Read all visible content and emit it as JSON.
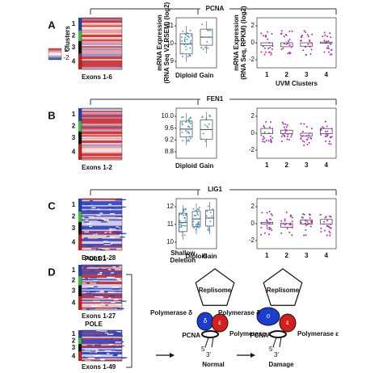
{
  "panels": [
    {
      "label": "A",
      "gene": "PCNA",
      "legend": {
        "title": "Clusters",
        "high": "2",
        "low": "-2"
      },
      "clusters": [
        "1",
        "2",
        "3",
        "4"
      ],
      "heatmap_label": "Exons 1-6",
      "box_y_label": [
        "mRNA Expression",
        "(RNA Seq V2 RSEM) (log2)"
      ],
      "box_yticks": [
        "11",
        "10",
        "9"
      ],
      "box_categories": [
        "Diploid",
        "Gain"
      ],
      "bar_y_label": [
        "mRNA Expression",
        "(RNA Seq, RPKM) (log2)"
      ],
      "bar_yticks": [
        "2",
        "0",
        "-2"
      ],
      "bar_categories": [
        "1",
        "2",
        "3",
        "4"
      ],
      "bar_x_label": "UVM Clusters"
    },
    {
      "label": "B",
      "gene": "FEN1",
      "clusters": [
        "1",
        "2",
        "3",
        "4"
      ],
      "heatmap_label": "Exons 1-2",
      "box_yticks": [
        "10.0",
        "9.6",
        "9.2",
        "8.8"
      ],
      "box_categories": [
        "Diploid",
        "Gain"
      ],
      "bar_yticks": [
        "2",
        "0",
        "-2"
      ],
      "bar_categories": [
        "1",
        "2",
        "3",
        "4"
      ]
    },
    {
      "label": "C",
      "gene": "LIG1",
      "clusters": [
        "1",
        "2",
        "3",
        "4"
      ],
      "heatmap_label": "Exons 1-28",
      "box_yticks": [
        "12",
        "11",
        "10"
      ],
      "box_categories": [
        "Shallow Deletion",
        "Diploid",
        "Gain"
      ],
      "bar_yticks": [
        "2",
        "0",
        "-2"
      ],
      "bar_categories": [
        "1",
        "2",
        "3",
        "4"
      ]
    }
  ],
  "panel_d": {
    "label": "D",
    "clusters": [
      "1",
      "2",
      "3",
      "4"
    ],
    "heatmaps": [
      {
        "gene": "POLD1",
        "exons": "Exons 1-27"
      },
      {
        "gene": "POLE",
        "exons": "Exons 1-49"
      }
    ],
    "diagrams": [
      {
        "replisome": "Replisome",
        "pol_delta": "Polymerase δ",
        "pol_epsilon": "Polymerase ε",
        "delta": "δ",
        "epsilon": "ε",
        "pcna": "PCNA",
        "five": "5'",
        "three": "3'",
        "caption": "Normal"
      },
      {
        "replisome": "Replisome",
        "pol_delta": "Polymerase δ",
        "pol_epsilon": "Polymerase ε",
        "delta": "σ",
        "epsilon": "ε",
        "pcna": "PCNA",
        "five": "5'",
        "three": "3'",
        "caption": "Damage"
      }
    ]
  }
}
